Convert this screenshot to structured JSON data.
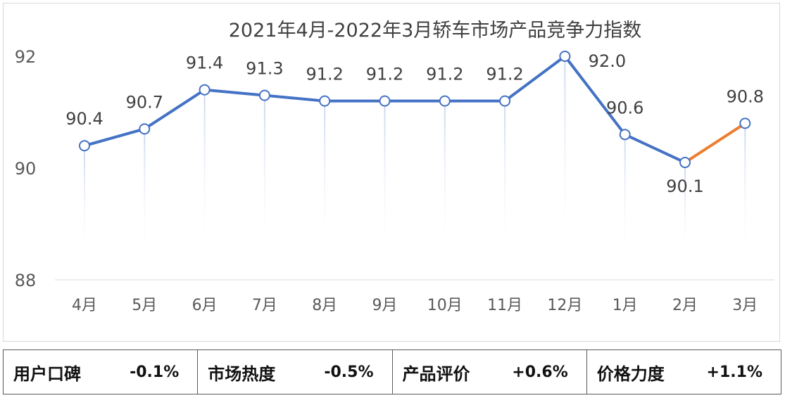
{
  "chart_data": {
    "type": "line",
    "title": "2021年4月-2022年3月轿车市场产品竞争力指数",
    "categories": [
      "4月",
      "5月",
      "6月",
      "7月",
      "8月",
      "9月",
      "10月",
      "11月",
      "12月",
      "1月",
      "2月",
      "3月"
    ],
    "series": [
      {
        "values": [
          90.4,
          90.7,
          91.4,
          91.3,
          91.2,
          91.2,
          91.2,
          91.2,
          92.0,
          90.6,
          90.1,
          90.8
        ]
      }
    ],
    "data_labels": [
      "90.4",
      "90.7",
      "91.4",
      "91.3",
      "91.2",
      "91.2",
      "91.2",
      "91.2",
      "92.0",
      "90.6",
      "90.1",
      "90.8"
    ],
    "yticks": [
      "88",
      "90",
      "92"
    ],
    "ylim": [
      88,
      92
    ],
    "grid": false,
    "colors": {
      "line": "#4472c4",
      "highlight": "#ed7d31",
      "droplines": "#dae3f3"
    }
  },
  "stats": [
    {
      "label": "用户口碑",
      "value": "-0.1%"
    },
    {
      "label": "市场热度",
      "value": "-0.5%"
    },
    {
      "label": "产品评价",
      "value": "+0.6%"
    },
    {
      "label": "价格力度",
      "value": "+1.1%"
    }
  ]
}
